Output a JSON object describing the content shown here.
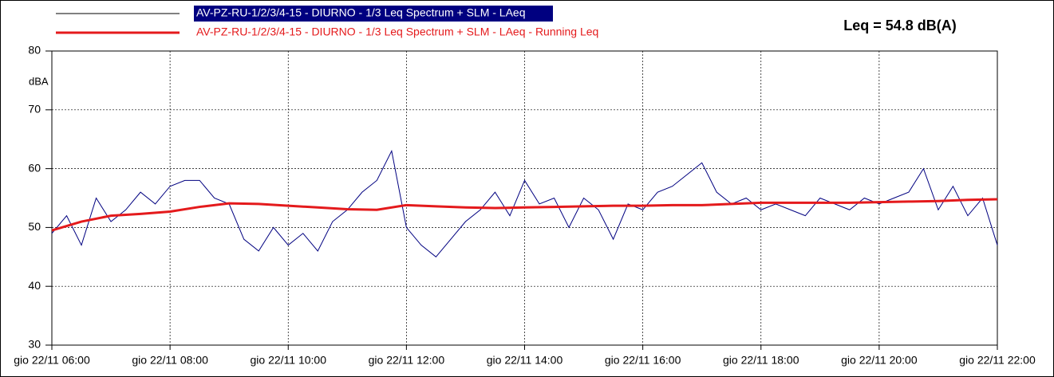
{
  "chart_data": {
    "type": "line",
    "annotation": "Leq = 54.8 dB(A)",
    "y_label": "dBA",
    "ylim": [
      30,
      80
    ],
    "yticks": [
      30,
      40,
      50,
      60,
      70,
      80
    ],
    "xlim": [
      "06:00",
      "22:00"
    ],
    "xticks": [
      {
        "value": "06:00",
        "label": "gio 22/11 06:00"
      },
      {
        "value": "08:00",
        "label": "gio 22/11 08:00"
      },
      {
        "value": "10:00",
        "label": "gio 22/11 10:00"
      },
      {
        "value": "12:00",
        "label": "gio 22/11 12:00"
      },
      {
        "value": "14:00",
        "label": "gio 22/11 14:00"
      },
      {
        "value": "16:00",
        "label": "gio 22/11 16:00"
      },
      {
        "value": "18:00",
        "label": "gio 22/11 18:00"
      },
      {
        "value": "20:00",
        "label": "gio 22/11 20:00"
      },
      {
        "value": "22:00",
        "label": "gio 22/11 22:00"
      }
    ],
    "grid": true,
    "series": [
      {
        "name": "AV-PZ-RU-1/2/3/4-15 - DIURNO - 1/3 Leq Spectrum + SLM - LAeq",
        "color": "#000080",
        "x": [
          "06:00",
          "06:15",
          "06:30",
          "06:45",
          "07:00",
          "07:15",
          "07:30",
          "07:45",
          "08:00",
          "08:15",
          "08:30",
          "08:45",
          "09:00",
          "09:15",
          "09:30",
          "09:45",
          "10:00",
          "10:15",
          "10:30",
          "10:45",
          "11:00",
          "11:15",
          "11:30",
          "11:45",
          "12:00",
          "12:15",
          "12:30",
          "12:45",
          "13:00",
          "13:15",
          "13:30",
          "13:45",
          "14:00",
          "14:15",
          "14:30",
          "14:45",
          "15:00",
          "15:15",
          "15:30",
          "15:45",
          "16:00",
          "16:15",
          "16:30",
          "16:45",
          "17:00",
          "17:15",
          "17:30",
          "17:45",
          "18:00",
          "18:15",
          "18:30",
          "18:45",
          "19:00",
          "19:15",
          "19:30",
          "19:45",
          "20:00",
          "20:15",
          "20:30",
          "20:45",
          "21:00",
          "21:15",
          "21:30",
          "21:45",
          "22:00"
        ],
        "values": [
          49,
          52,
          47,
          55,
          51,
          53,
          56,
          54,
          57,
          58,
          58,
          55,
          54,
          48,
          46,
          50,
          47,
          49,
          46,
          51,
          53,
          56,
          58,
          63,
          50,
          47,
          45,
          48,
          51,
          53,
          56,
          52,
          58,
          54,
          55,
          50,
          55,
          53,
          48,
          54,
          53,
          56,
          57,
          59,
          61,
          56,
          54,
          55,
          53,
          54,
          53,
          52,
          55,
          54,
          53,
          55,
          54,
          55,
          56,
          60,
          53,
          57,
          52,
          55,
          47
        ]
      },
      {
        "name": "AV-PZ-RU-1/2/3/4-15 - DIURNO - 1/3 Leq Spectrum + SLM - LAeq - Running Leq",
        "color": "#e41a1c",
        "x": [
          "06:00",
          "06:30",
          "07:00",
          "07:30",
          "08:00",
          "08:30",
          "09:00",
          "09:30",
          "10:00",
          "10:30",
          "11:00",
          "11:30",
          "12:00",
          "12:30",
          "13:00",
          "13:30",
          "14:00",
          "14:30",
          "15:00",
          "15:30",
          "16:00",
          "16:30",
          "17:00",
          "17:30",
          "18:00",
          "18:30",
          "19:00",
          "19:30",
          "20:00",
          "20:30",
          "21:00",
          "21:30",
          "22:00"
        ],
        "values": [
          49.5,
          51,
          52,
          52.3,
          52.7,
          53.5,
          54.1,
          54,
          53.7,
          53.4,
          53.1,
          53,
          53.8,
          53.6,
          53.4,
          53.3,
          53.4,
          53.5,
          53.6,
          53.7,
          53.7,
          53.8,
          53.8,
          54,
          54.2,
          54.2,
          54.2,
          54.2,
          54.3,
          54.4,
          54.5,
          54.7,
          54.8
        ]
      }
    ]
  }
}
